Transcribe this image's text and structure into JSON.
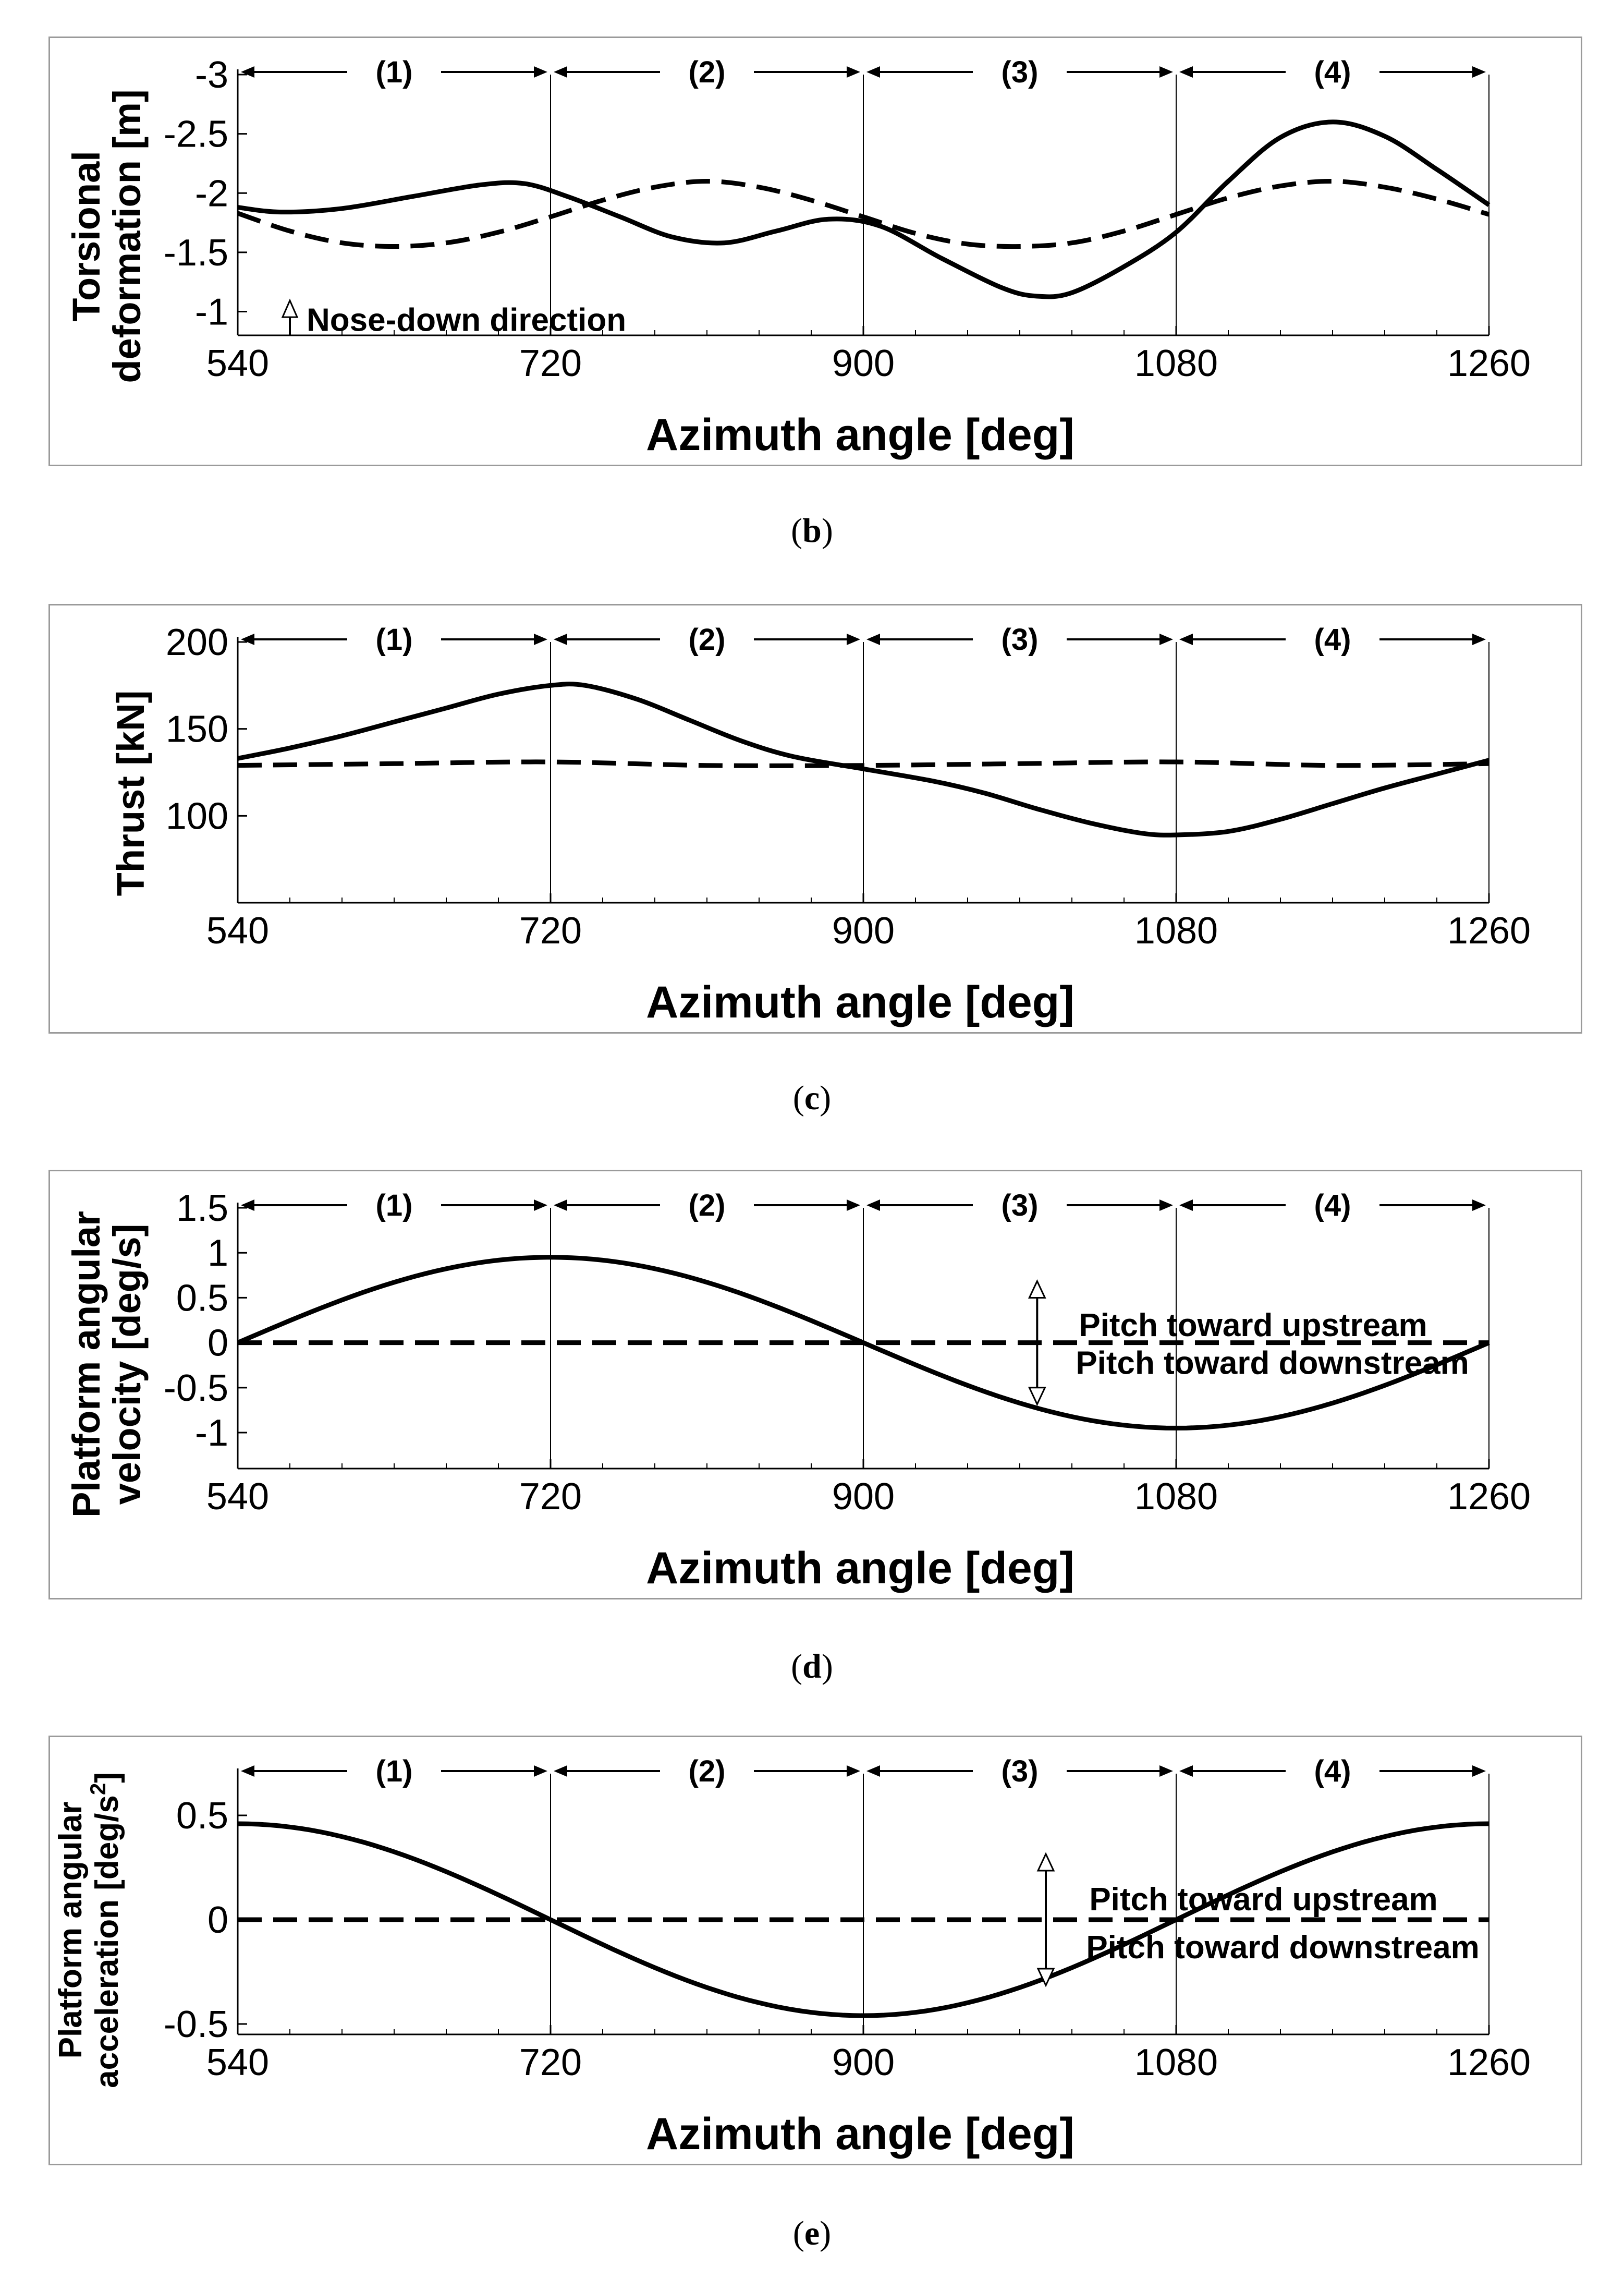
{
  "chart_data": [
    {
      "id": "b",
      "type": "line",
      "caption": {
        "open": "(",
        "letter": "b",
        "close": ")"
      },
      "xlabel": "Azimuth angle [deg]",
      "ylabel_lines": [
        "Torsional",
        "deformation [m]"
      ],
      "xlim": [
        540,
        1260
      ],
      "ylim": [
        -3,
        -0.8
      ],
      "y_inverted": true,
      "xticks": [
        540,
        720,
        900,
        1080,
        1260
      ],
      "xtick_labels": [
        "540",
        "720",
        "900",
        "1080",
        "1260"
      ],
      "yticks": [
        -3,
        -2.5,
        -2,
        -1.5,
        -1
      ],
      "ytick_labels": [
        "-3",
        "-2.5",
        "-2",
        "-1.5",
        "-1"
      ],
      "segments": [
        "(1)",
        "(2)",
        "(3)",
        "(4)"
      ],
      "segment_bounds": [
        540,
        720,
        900,
        1080,
        1260
      ],
      "annotation": {
        "text": "Nose-down direction",
        "x": 570,
        "y_from": -0.8,
        "y_to": -1.05
      },
      "series": [
        {
          "name": "solid",
          "style": "solid",
          "x": [
            540,
            565,
            600,
            640,
            680,
            705,
            730,
            760,
            790,
            820,
            850,
            880,
            910,
            945,
            980,
            1000,
            1020,
            1050,
            1080,
            1110,
            1140,
            1170,
            1200,
            1230,
            1260
          ],
          "y": [
            -1.88,
            -1.84,
            -1.87,
            -1.97,
            -2.07,
            -2.08,
            -1.97,
            -1.8,
            -1.63,
            -1.58,
            -1.68,
            -1.78,
            -1.72,
            -1.45,
            -1.2,
            -1.13,
            -1.16,
            -1.38,
            -1.67,
            -2.1,
            -2.47,
            -2.6,
            -2.48,
            -2.2,
            -1.9
          ]
        },
        {
          "name": "dashed",
          "style": "dashed",
          "x": [
            540,
            570,
            600,
            630,
            660,
            690,
            720,
            750,
            780,
            810,
            840,
            870,
            900,
            930,
            960,
            990,
            1020,
            1050,
            1080,
            1110,
            1140,
            1170,
            1200,
            1230,
            1260
          ],
          "y": [
            -1.83,
            -1.68,
            -1.58,
            -1.55,
            -1.58,
            -1.67,
            -1.8,
            -1.94,
            -2.05,
            -2.1,
            -2.05,
            -1.94,
            -1.8,
            -1.66,
            -1.57,
            -1.55,
            -1.58,
            -1.68,
            -1.82,
            -1.96,
            -2.06,
            -2.1,
            -2.05,
            -1.95,
            -1.82
          ]
        }
      ]
    },
    {
      "id": "c",
      "type": "line",
      "caption": {
        "open": "(",
        "letter": "c",
        "close": ")"
      },
      "xlabel": "Azimuth angle [deg]",
      "ylabel_lines": [
        "Thrust [kN]"
      ],
      "xlim": [
        540,
        1260
      ],
      "ylim": [
        50,
        200
      ],
      "y_inverted": false,
      "xticks": [
        540,
        720,
        900,
        1080,
        1260
      ],
      "xtick_labels": [
        "540",
        "720",
        "900",
        "1080",
        "1260"
      ],
      "yticks": [
        100,
        150,
        200
      ],
      "ytick_labels": [
        "100",
        "150",
        "200"
      ],
      "segments": [
        "(1)",
        "(2)",
        "(3)",
        "(4)"
      ],
      "segment_bounds": [
        540,
        720,
        900,
        1080,
        1260
      ],
      "series": [
        {
          "name": "solid",
          "style": "solid",
          "x": [
            540,
            570,
            600,
            630,
            660,
            690,
            720,
            740,
            770,
            800,
            830,
            860,
            900,
            940,
            970,
            1000,
            1030,
            1060,
            1080,
            1110,
            1140,
            1170,
            1200,
            1230,
            1260
          ],
          "y": [
            133,
            139,
            146,
            154,
            162,
            170,
            175,
            175,
            167,
            155,
            143,
            134,
            127,
            120,
            113,
            104,
            96,
            90,
            89,
            91,
            98,
            107,
            116,
            124,
            132
          ]
        },
        {
          "name": "dashed",
          "style": "dashed",
          "x": [
            540,
            630,
            720,
            810,
            900,
            990,
            1080,
            1170,
            1260
          ],
          "y": [
            129,
            130,
            131,
            129,
            129,
            130,
            131,
            129,
            130
          ]
        }
      ]
    },
    {
      "id": "d",
      "type": "line",
      "caption": {
        "open": "(",
        "letter": "d",
        "close": ")"
      },
      "xlabel": "Azimuth angle [deg]",
      "ylabel_lines": [
        "Platform angular",
        "velocity [deg/s]"
      ],
      "xlim": [
        540,
        1260
      ],
      "ylim": [
        -1.4,
        1.5
      ],
      "y_inverted": false,
      "xticks": [
        540,
        720,
        900,
        1080,
        1260
      ],
      "xtick_labels": [
        "540",
        "720",
        "900",
        "1080",
        "1260"
      ],
      "yticks": [
        1.5,
        1,
        0.5,
        0,
        -0.5,
        -1
      ],
      "ytick_labels": [
        "1.5",
        "1",
        "0.5",
        "0",
        "-0.5",
        "-1"
      ],
      "segments": [
        "(1)",
        "(2)",
        "(3)",
        "(4)"
      ],
      "segment_bounds": [
        540,
        720,
        900,
        1080,
        1260
      ],
      "pitch_arrow": {
        "x": 1000,
        "y_top": 0.65,
        "y_bottom": -0.65
      },
      "pitch_labels": {
        "up": "Pitch toward upstream",
        "down": "Pitch toward downstream",
        "x": 1024,
        "y_up": 0.2,
        "y_down": -0.22
      },
      "series": [
        {
          "name": "solid",
          "style": "solid",
          "function": "sin",
          "amplitude": 0.95,
          "phase_deg": 540,
          "period_deg": 720,
          "x": [
            540,
            600,
            660,
            720,
            780,
            840,
            900,
            960,
            1020,
            1080,
            1140,
            1200,
            1260
          ],
          "y": [
            0,
            0.48,
            0.82,
            0.95,
            0.82,
            0.48,
            0,
            -0.48,
            -0.82,
            -0.95,
            -0.82,
            -0.48,
            0
          ]
        },
        {
          "name": "dashed",
          "style": "dashed",
          "x": [
            540,
            1260
          ],
          "y": [
            0,
            0
          ]
        }
      ]
    },
    {
      "id": "e",
      "type": "line",
      "caption": {
        "open": "(",
        "letter": "e",
        "close": ")"
      },
      "xlabel": "Azimuth angle [deg]",
      "ylabel_lines": [
        "Platform angular",
        "acceleration [deg/s",
        "2",
        "]"
      ],
      "xlim": [
        540,
        1260
      ],
      "ylim": [
        -0.55,
        0.7
      ],
      "y_inverted": false,
      "xticks": [
        540,
        720,
        900,
        1080,
        1260
      ],
      "xtick_labels": [
        "540",
        "720",
        "900",
        "1080",
        "1260"
      ],
      "yticks": [
        0.5,
        0,
        -0.5
      ],
      "ytick_labels": [
        "0.5",
        "0",
        "-0.5"
      ],
      "segments": [
        "(1)",
        "(2)",
        "(3)",
        "(4)"
      ],
      "segment_bounds": [
        540,
        720,
        900,
        1080,
        1260
      ],
      "pitch_arrow": {
        "x": 1005,
        "y_top": 0.3,
        "y_bottom": -0.3
      },
      "pitch_labels": {
        "up": "Pitch toward upstream",
        "down": "Pitch toward downstream",
        "x": 1030,
        "y_up": 0.1,
        "y_down": -0.13
      },
      "series": [
        {
          "name": "solid",
          "style": "solid",
          "function": "cos",
          "amplitude": 0.46,
          "phase_deg": 540,
          "period_deg": 720,
          "x": [
            540,
            600,
            660,
            720,
            780,
            840,
            900,
            960,
            1020,
            1080,
            1140,
            1200,
            1260
          ],
          "y": [
            0.46,
            0.4,
            0.23,
            0,
            -0.23,
            -0.4,
            -0.46,
            -0.4,
            -0.23,
            0,
            0.23,
            0.4,
            0.46
          ]
        },
        {
          "name": "dashed",
          "style": "dashed",
          "x": [
            540,
            1260
          ],
          "y": [
            0,
            0
          ]
        }
      ]
    }
  ]
}
